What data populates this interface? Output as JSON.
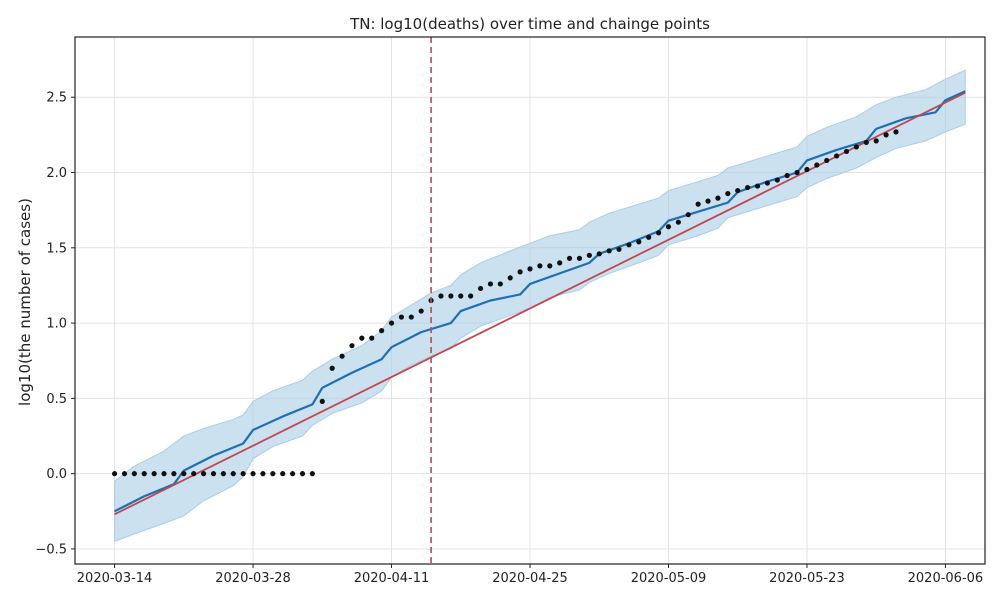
{
  "chart_data": {
    "type": "line",
    "title": "TN: log10(deaths) over time and chainge points",
    "xlabel": "",
    "ylabel": "log10(the number of cases)",
    "x_ticks": [
      "2020-03-14",
      "2020-03-28",
      "2020-04-11",
      "2020-04-25",
      "2020-05-09",
      "2020-05-23",
      "2020-06-06"
    ],
    "y_ticks": [
      "−0.5",
      "0.0",
      "0.5",
      "1.0",
      "1.5",
      "2.0",
      "2.5"
    ],
    "xlim": [
      "2020-03-10",
      "2020-06-10"
    ],
    "ylim": [
      -0.6,
      2.9
    ],
    "grid": true,
    "changepoint": "2020-04-15",
    "colors": {
      "observed": "#111111",
      "forecast": "#1f6fb4",
      "trend": "#c0484f",
      "interval": "#a9cde6",
      "changepoint": "#c0484f"
    },
    "series": [
      {
        "kind": "observed",
        "x": [
          "2020-03-14",
          "2020-03-15",
          "2020-03-16",
          "2020-03-17",
          "2020-03-18",
          "2020-03-19",
          "2020-03-20",
          "2020-03-21",
          "2020-03-22",
          "2020-03-23",
          "2020-03-24",
          "2020-03-25",
          "2020-03-26",
          "2020-03-27",
          "2020-03-28",
          "2020-03-29",
          "2020-03-30",
          "2020-03-31",
          "2020-04-01",
          "2020-04-02",
          "2020-04-03",
          "2020-04-04",
          "2020-04-05",
          "2020-04-06",
          "2020-04-07",
          "2020-04-08",
          "2020-04-09",
          "2020-04-10",
          "2020-04-11",
          "2020-04-12",
          "2020-04-13",
          "2020-04-14",
          "2020-04-15",
          "2020-04-16",
          "2020-04-17",
          "2020-04-18",
          "2020-04-19",
          "2020-04-20",
          "2020-04-21",
          "2020-04-22",
          "2020-04-23",
          "2020-04-24",
          "2020-04-25",
          "2020-04-26",
          "2020-04-27",
          "2020-04-28",
          "2020-04-29",
          "2020-04-30",
          "2020-05-01",
          "2020-05-02",
          "2020-05-03",
          "2020-05-04",
          "2020-05-05",
          "2020-05-06",
          "2020-05-07",
          "2020-05-08",
          "2020-05-09",
          "2020-05-10",
          "2020-05-11",
          "2020-05-12",
          "2020-05-13",
          "2020-05-14",
          "2020-05-15",
          "2020-05-16",
          "2020-05-17",
          "2020-05-18",
          "2020-05-19",
          "2020-05-20",
          "2020-05-21",
          "2020-05-22",
          "2020-05-23",
          "2020-05-24",
          "2020-05-25",
          "2020-05-26",
          "2020-05-27",
          "2020-05-28",
          "2020-05-29",
          "2020-05-30",
          "2020-05-31",
          "2020-06-01"
        ],
        "y": [
          0,
          0,
          0,
          0,
          0,
          0,
          0,
          0,
          0,
          0,
          0,
          0,
          0,
          0,
          0,
          0,
          0,
          0,
          0,
          0,
          0,
          0.48,
          0.7,
          0.78,
          0.85,
          0.9,
          0.9,
          0.95,
          1.0,
          1.04,
          1.04,
          1.08,
          1.15,
          1.18,
          1.18,
          1.18,
          1.18,
          1.23,
          1.26,
          1.26,
          1.3,
          1.34,
          1.36,
          1.38,
          1.38,
          1.4,
          1.43,
          1.43,
          1.45,
          1.46,
          1.48,
          1.49,
          1.52,
          1.54,
          1.57,
          1.6,
          1.64,
          1.67,
          1.72,
          1.79,
          1.81,
          1.83,
          1.86,
          1.88,
          1.9,
          1.91,
          1.93,
          1.95,
          1.98,
          2.0,
          2.02,
          2.05,
          2.08,
          2.11,
          2.14,
          2.17,
          2.2,
          2.21,
          2.25,
          2.27
        ]
      },
      {
        "kind": "forecast",
        "x": [
          "2020-03-14",
          "2020-03-17",
          "2020-03-20",
          "2020-03-21",
          "2020-03-24",
          "2020-03-27",
          "2020-03-28",
          "2020-03-31",
          "2020-04-03",
          "2020-04-04",
          "2020-04-07",
          "2020-04-10",
          "2020-04-11",
          "2020-04-14",
          "2020-04-17",
          "2020-04-18",
          "2020-04-21",
          "2020-04-24",
          "2020-04-25",
          "2020-04-28",
          "2020-05-01",
          "2020-05-02",
          "2020-05-05",
          "2020-05-08",
          "2020-05-09",
          "2020-05-12",
          "2020-05-15",
          "2020-05-16",
          "2020-05-19",
          "2020-05-22",
          "2020-05-23",
          "2020-05-26",
          "2020-05-29",
          "2020-05-30",
          "2020-06-02",
          "2020-06-05",
          "2020-06-06",
          "2020-06-08"
        ],
        "y": [
          -0.25,
          -0.15,
          -0.07,
          0.02,
          0.12,
          0.2,
          0.29,
          0.38,
          0.46,
          0.57,
          0.67,
          0.76,
          0.84,
          0.94,
          1.0,
          1.08,
          1.15,
          1.19,
          1.26,
          1.33,
          1.4,
          1.46,
          1.53,
          1.61,
          1.68,
          1.74,
          1.8,
          1.87,
          1.94,
          2.0,
          2.08,
          2.15,
          2.21,
          2.29,
          2.36,
          2.4,
          2.48,
          2.54
        ]
      },
      {
        "kind": "trend",
        "x": [
          "2020-03-14",
          "2020-06-08"
        ],
        "y": [
          -0.27,
          2.53
        ]
      },
      {
        "kind": "interval",
        "x": [
          "2020-03-14",
          "2020-03-16",
          "2020-03-19",
          "2020-03-21",
          "2020-03-23",
          "2020-03-26",
          "2020-03-27",
          "2020-03-28",
          "2020-03-30",
          "2020-04-02",
          "2020-04-03",
          "2020-04-05",
          "2020-04-08",
          "2020-04-10",
          "2020-04-11",
          "2020-04-13",
          "2020-04-15",
          "2020-04-17",
          "2020-04-18",
          "2020-04-20",
          "2020-04-23",
          "2020-04-25",
          "2020-04-27",
          "2020-04-30",
          "2020-05-01",
          "2020-05-03",
          "2020-05-06",
          "2020-05-08",
          "2020-05-09",
          "2020-05-12",
          "2020-05-14",
          "2020-05-15",
          "2020-05-17",
          "2020-05-20",
          "2020-05-22",
          "2020-05-23",
          "2020-05-25",
          "2020-05-28",
          "2020-05-30",
          "2020-06-01",
          "2020-06-04",
          "2020-06-06",
          "2020-06-08"
        ],
        "upper": [
          -0.05,
          0.05,
          0.15,
          0.25,
          0.3,
          0.36,
          0.39,
          0.48,
          0.55,
          0.62,
          0.68,
          0.76,
          0.85,
          0.95,
          1.04,
          1.12,
          1.2,
          1.25,
          1.32,
          1.4,
          1.48,
          1.53,
          1.58,
          1.62,
          1.67,
          1.73,
          1.79,
          1.83,
          1.88,
          1.94,
          1.98,
          2.03,
          2.07,
          2.13,
          2.17,
          2.24,
          2.3,
          2.37,
          2.45,
          2.5,
          2.55,
          2.62,
          2.68
        ],
        "lower": [
          -0.45,
          -0.4,
          -0.33,
          -0.28,
          -0.18,
          -0.08,
          -0.02,
          0.1,
          0.18,
          0.25,
          0.32,
          0.4,
          0.47,
          0.55,
          0.64,
          0.72,
          0.78,
          0.83,
          0.9,
          0.98,
          1.05,
          1.1,
          1.17,
          1.22,
          1.27,
          1.33,
          1.4,
          1.45,
          1.52,
          1.58,
          1.63,
          1.7,
          1.74,
          1.8,
          1.84,
          1.9,
          1.96,
          2.03,
          2.1,
          2.16,
          2.21,
          2.27,
          2.32
        ]
      }
    ]
  }
}
